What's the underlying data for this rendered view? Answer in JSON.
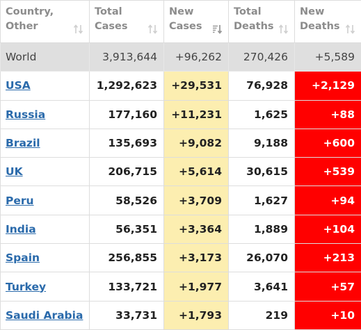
{
  "columns": [
    {
      "line1": "Country,",
      "line2": "Other",
      "sort": "inactive"
    },
    {
      "line1": "Total",
      "line2": "Cases",
      "sort": "inactive"
    },
    {
      "line1": "New",
      "line2": "Cases",
      "sort": "descending-active"
    },
    {
      "line1": "Total",
      "line2": "Deaths",
      "sort": "inactive"
    },
    {
      "line1": "New",
      "line2": "Deaths",
      "sort": "inactive"
    }
  ],
  "world": {
    "country": "World",
    "total_cases": "3,913,644",
    "new_cases": "+96,262",
    "total_deaths": "270,426",
    "new_deaths": "+5,589"
  },
  "rows": [
    {
      "country": "USA",
      "total_cases": "1,292,623",
      "new_cases": "+29,531",
      "total_deaths": "76,928",
      "new_deaths": "+2,129"
    },
    {
      "country": "Russia",
      "total_cases": "177,160",
      "new_cases": "+11,231",
      "total_deaths": "1,625",
      "new_deaths": "+88"
    },
    {
      "country": "Brazil",
      "total_cases": "135,693",
      "new_cases": "+9,082",
      "total_deaths": "9,188",
      "new_deaths": "+600"
    },
    {
      "country": "UK",
      "total_cases": "206,715",
      "new_cases": "+5,614",
      "total_deaths": "30,615",
      "new_deaths": "+539"
    },
    {
      "country": "Peru",
      "total_cases": "58,526",
      "new_cases": "+3,709",
      "total_deaths": "1,627",
      "new_deaths": "+94"
    },
    {
      "country": "India",
      "total_cases": "56,351",
      "new_cases": "+3,364",
      "total_deaths": "1,889",
      "new_deaths": "+104"
    },
    {
      "country": "Spain",
      "total_cases": "256,855",
      "new_cases": "+3,173",
      "total_deaths": "26,070",
      "new_deaths": "+213"
    },
    {
      "country": "Turkey",
      "total_cases": "133,721",
      "new_cases": "+1,977",
      "total_deaths": "3,641",
      "new_deaths": "+57"
    },
    {
      "country": "Saudi Arabia",
      "total_cases": "33,731",
      "new_cases": "+1,793",
      "total_deaths": "219",
      "new_deaths": "+10"
    }
  ],
  "colors": {
    "new_cases_bg": "#fceeb0",
    "new_deaths_bg": "#ff0000",
    "world_row_bg": "#dfdfdf",
    "link": "#2a6aab",
    "header_text": "#8c8c8c"
  }
}
